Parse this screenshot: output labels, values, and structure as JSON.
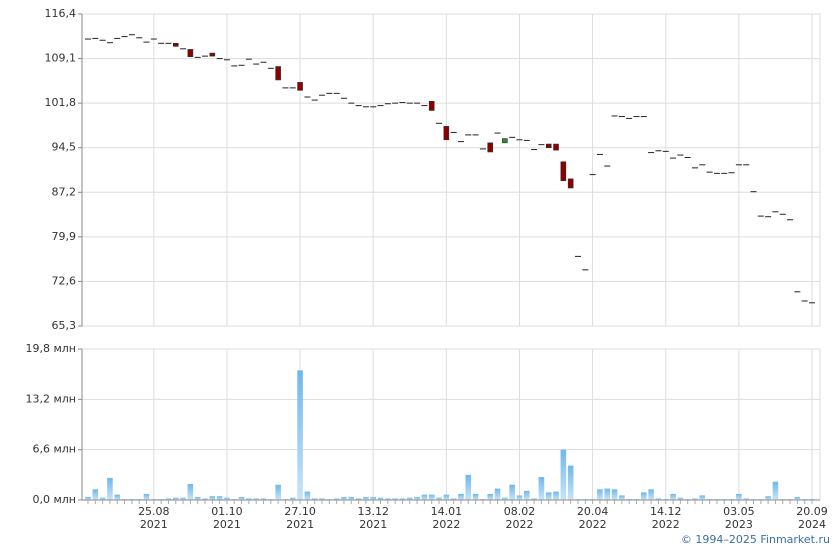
{
  "chart_data": [
    {
      "type": "candlestick",
      "open": [
        112.3,
        112.4,
        112.1,
        111.7,
        112.4,
        112.7,
        113.0,
        112.5,
        111.8,
        112.3,
        111.6,
        111.6,
        111.6,
        110.7,
        110.6,
        109.3,
        109.5,
        110.0,
        109.1,
        108.9,
        107.9,
        108.0,
        109.0,
        108.2,
        108.5,
        107.5,
        107.8,
        104.3,
        104.3,
        105.2,
        102.8,
        102.3,
        103.1,
        103.4,
        103.4,
        102.6,
        101.8,
        101.4,
        101.2,
        101.2,
        101.4,
        101.7,
        101.8,
        101.9,
        101.8,
        101.8,
        101.4,
        102.1,
        98.5,
        98.0,
        97.0,
        95.5,
        96.6,
        96.6,
        94.3,
        95.3,
        96.9,
        95.3,
        96.2,
        95.8,
        95.7,
        94.2,
        95.0,
        95.1,
        95.1,
        92.2,
        89.4,
        76.7,
        74.5,
        90.1,
        93.4,
        91.5,
        99.7,
        99.6,
        99.3,
        99.6,
        99.6,
        93.7,
        94.0,
        93.9,
        92.8,
        93.3,
        92.9,
        91.2,
        91.7,
        90.5,
        90.3,
        90.3,
        90.4,
        91.7,
        91.7,
        87.3,
        83.3,
        83.2,
        84.0,
        83.6,
        82.7,
        70.9,
        69.4,
        69.1
      ],
      "close": [
        112.3,
        112.4,
        112.1,
        111.7,
        112.4,
        112.7,
        113.0,
        112.5,
        111.8,
        112.3,
        111.6,
        111.6,
        111.1,
        110.7,
        109.4,
        109.3,
        109.5,
        109.5,
        109.1,
        108.9,
        107.9,
        108.0,
        109.0,
        108.2,
        108.5,
        107.5,
        105.6,
        104.3,
        104.3,
        103.9,
        102.8,
        102.3,
        103.1,
        103.4,
        103.4,
        102.6,
        101.8,
        101.4,
        101.2,
        101.2,
        101.4,
        101.7,
        101.8,
        101.9,
        101.8,
        101.8,
        101.4,
        100.6,
        98.5,
        95.8,
        97.0,
        95.5,
        96.6,
        96.6,
        94.3,
        93.8,
        96.9,
        96.0,
        96.2,
        95.8,
        95.7,
        94.2,
        95.0,
        94.5,
        94.1,
        89.1,
        87.9,
        76.7,
        74.5,
        90.1,
        93.4,
        91.5,
        99.7,
        99.6,
        99.3,
        99.6,
        99.6,
        93.7,
        94.0,
        93.9,
        92.8,
        93.3,
        92.9,
        91.2,
        91.7,
        90.5,
        90.3,
        90.3,
        90.4,
        91.7,
        91.7,
        87.3,
        83.3,
        83.2,
        84.0,
        83.6,
        82.7,
        70.9,
        69.4,
        69.1
      ],
      "up_color": "#2e8b2e",
      "down_color": "#8b0000",
      "ylim": [
        65.3,
        116.4
      ],
      "yticks": [
        {
          "value": 65.3,
          "label": "65,3"
        },
        {
          "value": 72.6,
          "label": "72,6"
        },
        {
          "value": 79.9,
          "label": "79,9"
        },
        {
          "value": 87.2,
          "label": "87,2"
        },
        {
          "value": 94.5,
          "label": "94,5"
        },
        {
          "value": 101.8,
          "label": "101,8"
        },
        {
          "value": 109.1,
          "label": "109,1"
        },
        {
          "value": 116.4,
          "label": "116,4"
        }
      ],
      "grid": true
    },
    {
      "type": "bar",
      "categories": [
        null,
        null,
        null,
        null,
        null,
        null,
        null,
        null,
        null,
        "25.08\n2021",
        null,
        null,
        null,
        null,
        null,
        null,
        null,
        null,
        null,
        "01.10\n2021",
        null,
        null,
        null,
        null,
        null,
        null,
        null,
        null,
        null,
        "27.10\n2021",
        null,
        null,
        null,
        null,
        null,
        null,
        null,
        null,
        null,
        "13.12\n2021",
        null,
        null,
        null,
        null,
        null,
        null,
        null,
        null,
        null,
        "14.01\n2022",
        null,
        null,
        null,
        null,
        null,
        null,
        null,
        null,
        null,
        "08.02\n2022",
        null,
        null,
        null,
        null,
        null,
        null,
        null,
        null,
        null,
        "20.04\n2022",
        null,
        null,
        null,
        null,
        null,
        null,
        null,
        null,
        null,
        "14.12\n2022",
        null,
        null,
        null,
        null,
        null,
        null,
        null,
        null,
        null,
        "03.05\n2023",
        null,
        null,
        null,
        null,
        null,
        null,
        null,
        null,
        null,
        "20.09\n2024"
      ],
      "values": [
        0.4,
        1.4,
        0.3,
        2.9,
        0.7,
        0.1,
        0.1,
        0.1,
        0.8,
        0.1,
        0.1,
        0.2,
        0.3,
        0.3,
        2.1,
        0.4,
        0.2,
        0.5,
        0.5,
        0.3,
        0.1,
        0.4,
        0.2,
        0.2,
        0.2,
        0.1,
        2.0,
        0.1,
        0.3,
        17.0,
        1.1,
        0.2,
        0.2,
        0.1,
        0.2,
        0.4,
        0.4,
        0.2,
        0.4,
        0.4,
        0.3,
        0.2,
        0.2,
        0.2,
        0.3,
        0.4,
        0.7,
        0.7,
        0.3,
        0.7,
        0.2,
        0.8,
        3.3,
        0.8,
        0.1,
        0.8,
        1.5,
        0.3,
        2.0,
        0.6,
        1.2,
        0.2,
        3.0,
        1.0,
        1.1,
        6.6,
        4.5,
        0.1,
        0.1,
        0.1,
        1.4,
        1.5,
        1.4,
        0.6,
        0.1,
        0.1,
        1.0,
        1.4,
        0.2,
        0.1,
        0.8,
        0.3,
        0.1,
        0.2,
        0.6,
        0.1,
        0.1,
        0.1,
        0.1,
        0.8,
        0.2,
        0.1,
        0.1,
        0.5,
        2.4,
        0.1,
        0.1,
        0.4,
        0.1,
        0.1
      ],
      "color": "#8cc8f0",
      "ylim": [
        0,
        19.8
      ],
      "yticks": [
        {
          "value": 0,
          "label": "0,0 млн"
        },
        {
          "value": 6.6,
          "label": "6,6 млн"
        },
        {
          "value": 13.2,
          "label": "13,2 млн"
        },
        {
          "value": 19.8,
          "label": "19,8 млн"
        }
      ],
      "grid": true
    }
  ],
  "copyright": "© 1994–2025 Finmarket.ru"
}
